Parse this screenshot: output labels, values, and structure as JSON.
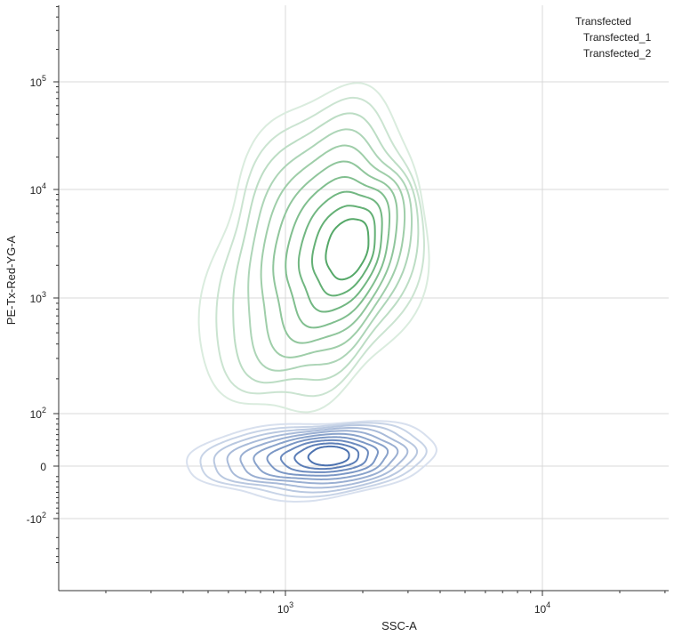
{
  "chart_data": {
    "type": "contour",
    "xlabel": "SSC-A",
    "ylabel": "PE-Tx-Red-YG-A",
    "xscale": "log",
    "yscale": "biexponential",
    "xlim": [
      150,
      30000
    ],
    "ylim": [
      -250,
      500000
    ],
    "x_ticks": [
      {
        "value": 1000,
        "base": "10",
        "exp": "3"
      },
      {
        "value": 10000,
        "base": "10",
        "exp": "4"
      }
    ],
    "y_ticks": [
      {
        "value": 100000,
        "base": "10",
        "exp": "5"
      },
      {
        "value": 10000,
        "base": "10",
        "exp": "4"
      },
      {
        "value": 1000,
        "base": "10",
        "exp": "3"
      },
      {
        "value": 100,
        "base": "10",
        "exp": "2"
      },
      {
        "value": 0,
        "base": "0",
        "exp": ""
      },
      {
        "value": -100,
        "base": "-10",
        "exp": "2"
      }
    ],
    "grid": true,
    "legend": {
      "title": "Transfected",
      "placement": "top-right",
      "entries": [
        "Transfected_1",
        "Transfected_2"
      ]
    },
    "series": [
      {
        "label": "Transfected_1",
        "color": "#55a868",
        "center": [
          1800,
          2900
        ],
        "levels": 10
      },
      {
        "label": "Transfected_2",
        "color": "#4c72b0",
        "center": [
          1500,
          20
        ],
        "levels": 10
      }
    ]
  }
}
